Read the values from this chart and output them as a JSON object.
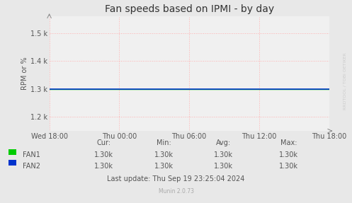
{
  "title": "Fan speeds based on IPMI - by day",
  "ylabel": "RPM or %",
  "background_color": "#e8e8e8",
  "plot_bg_color": "#f0f0f0",
  "grid_color": "#ffb0b0",
  "fan1_color": "#00cc00",
  "fan2_color": "#0033cc",
  "fan1_value": 1300,
  "fan2_value": 1300,
  "ylim_min": 1150,
  "ylim_max": 1560,
  "yticks": [
    1200,
    1300,
    1400,
    1500
  ],
  "ytick_labels": [
    "1.2 k",
    "1.3 k",
    "1.4 k",
    "1.5 k"
  ],
  "xtick_positions": [
    0.0,
    0.25,
    0.5,
    0.75,
    1.0
  ],
  "xtick_labels": [
    "Wed 18:00",
    "Thu 00:00",
    "Thu 06:00",
    "Thu 12:00",
    "Thu 18:00"
  ],
  "table_headers": [
    "Cur:",
    "Min:",
    "Avg:",
    "Max:"
  ],
  "table_fan1": [
    "1.30k",
    "1.30k",
    "1.30k",
    "1.30k"
  ],
  "table_fan2": [
    "1.30k",
    "1.30k",
    "1.30k",
    "1.30k"
  ],
  "last_update": "Last update: Thu Sep 19 23:25:04 2024",
  "munin_version": "Munin 2.0.73",
  "watermark": "RRDTOOL / TOBI OETIKER",
  "title_fontsize": 10,
  "axis_fontsize": 7,
  "table_fontsize": 7
}
